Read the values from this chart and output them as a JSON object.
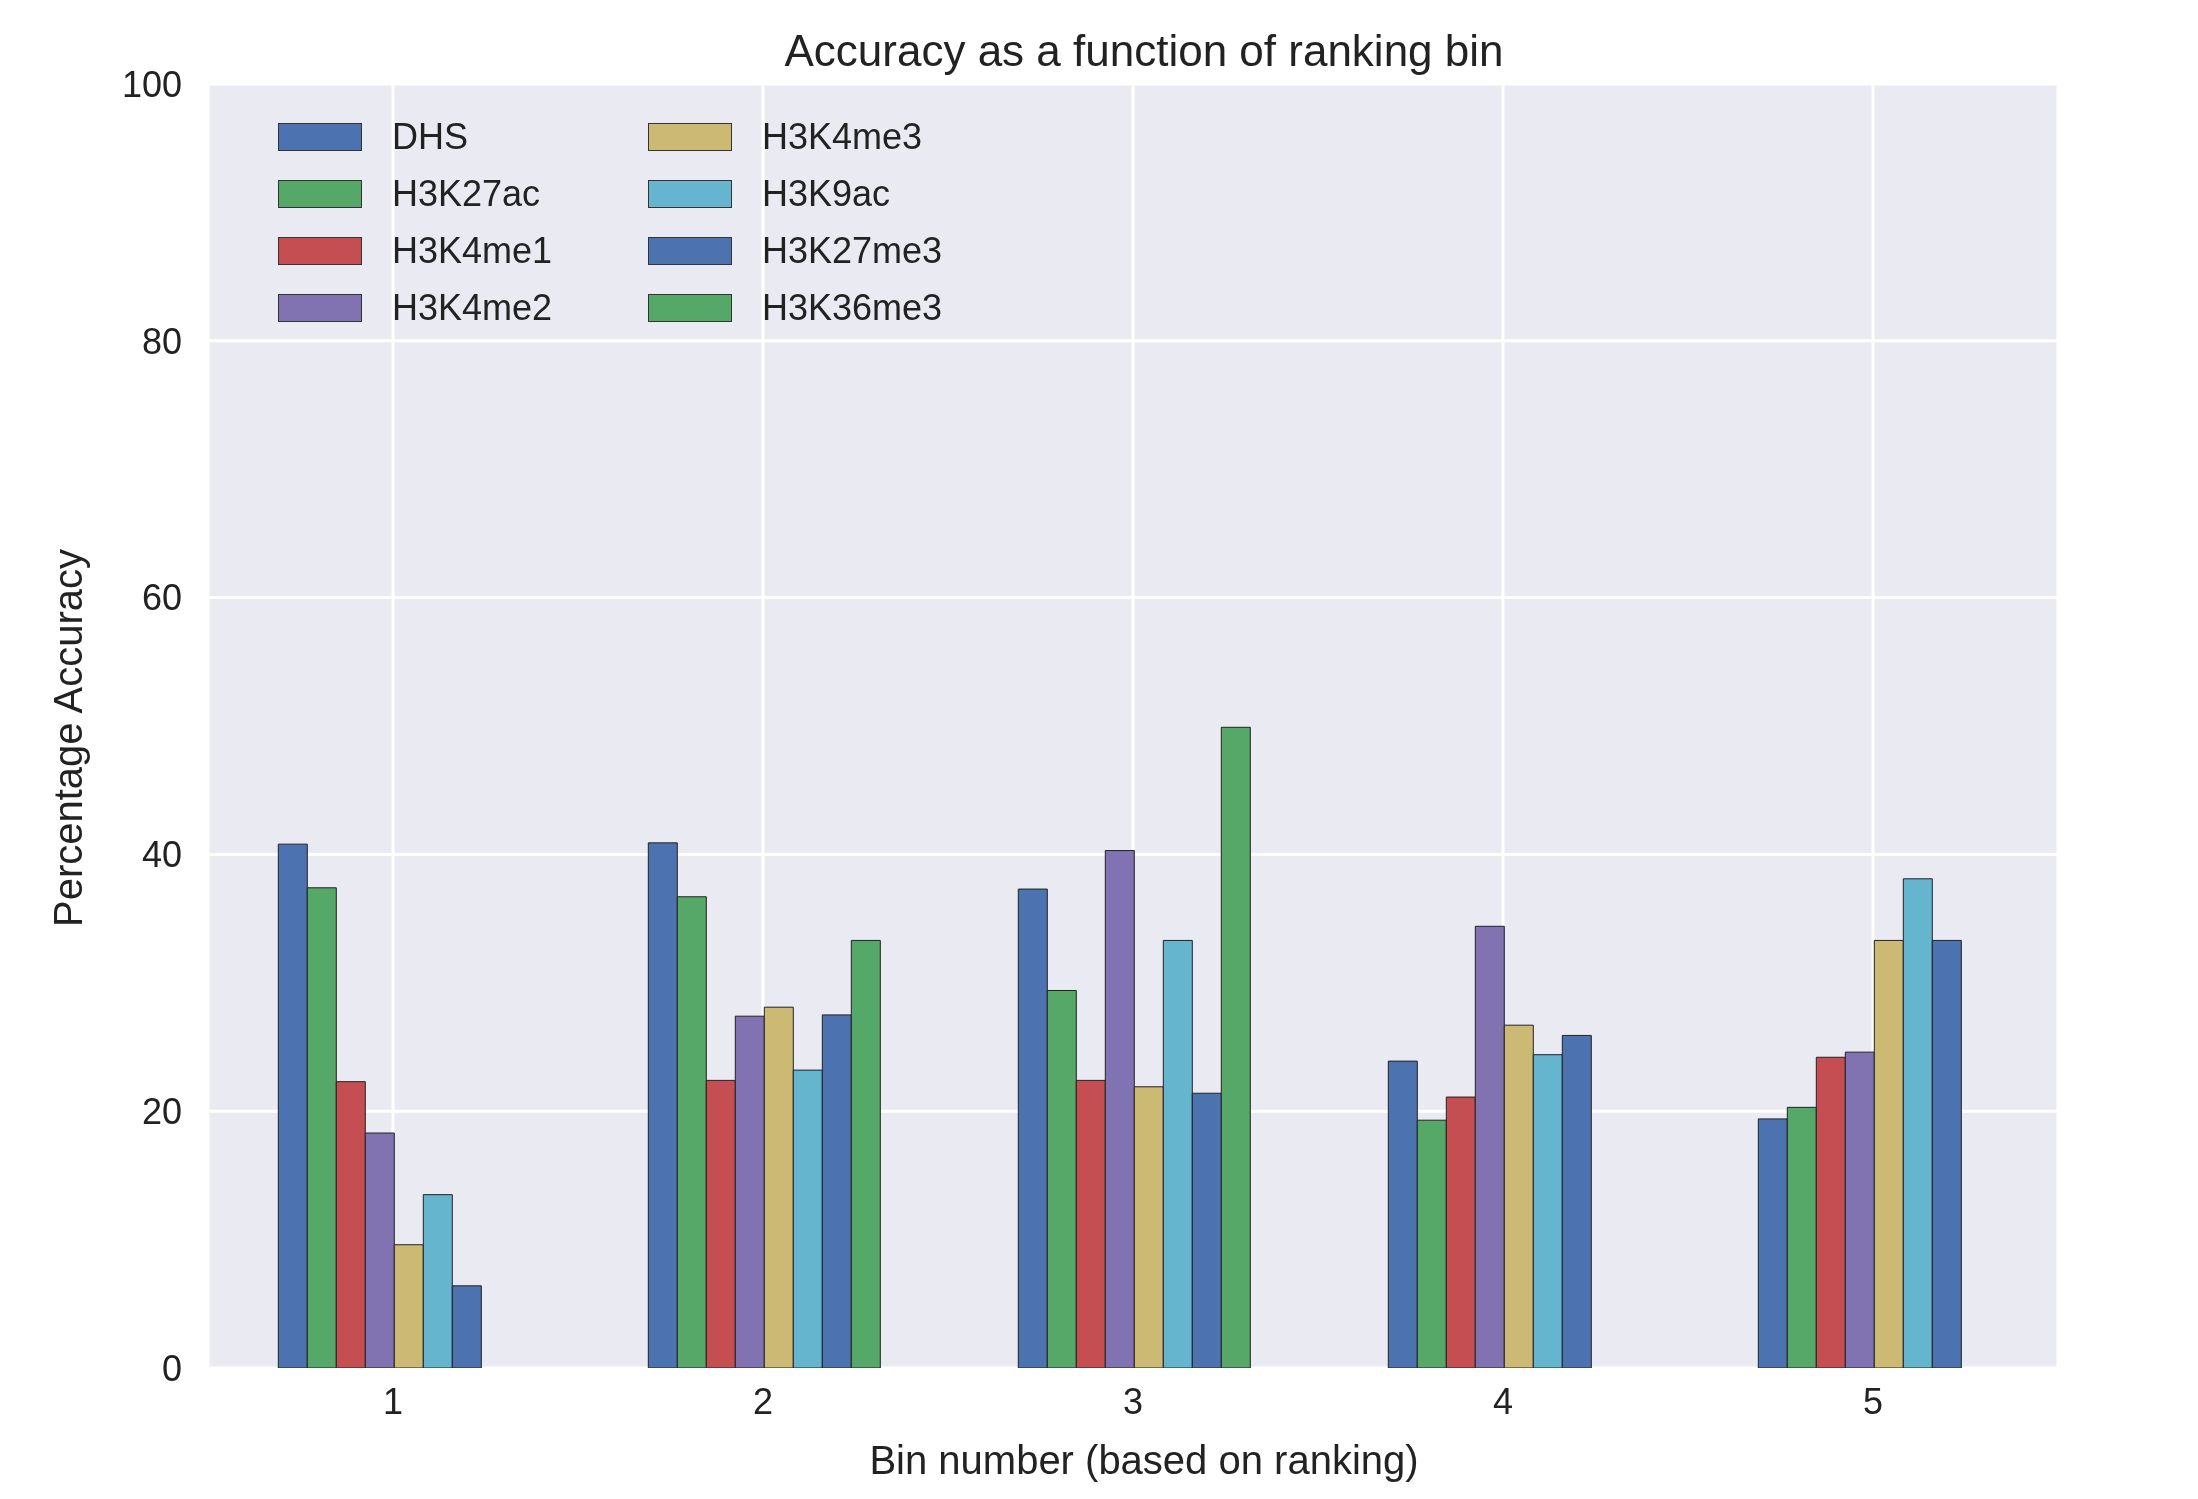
{
  "chart_data": {
    "type": "bar",
    "title": "Accuracy as a function of ranking bin",
    "xlabel": "Bin number (based on ranking)",
    "ylabel": "Percentage Accuracy",
    "categories": [
      "1",
      "2",
      "3",
      "4",
      "5"
    ],
    "series": [
      {
        "name": "DHS",
        "color": "#4c72b0",
        "values": [
          40.8,
          40.9,
          37.3,
          23.9,
          19.4
        ]
      },
      {
        "name": "H3K27ac",
        "color": "#55a868",
        "values": [
          37.4,
          36.7,
          29.4,
          19.3,
          20.3
        ]
      },
      {
        "name": "H3K4me1",
        "color": "#c44e52",
        "values": [
          22.3,
          22.4,
          22.4,
          21.1,
          24.2
        ]
      },
      {
        "name": "H3K4me2",
        "color": "#8172b2",
        "values": [
          18.3,
          27.4,
          40.3,
          34.4,
          24.6
        ]
      },
      {
        "name": "H3K4me3",
        "color": "#ccb974",
        "values": [
          9.6,
          28.1,
          21.9,
          26.7,
          33.3
        ]
      },
      {
        "name": "H3K9ac",
        "color": "#64b5cd",
        "values": [
          13.5,
          23.2,
          33.3,
          24.4,
          38.1
        ]
      },
      {
        "name": "H3K27me3",
        "color": "#4c72b0",
        "values": [
          6.4,
          27.5,
          21.4,
          25.9,
          33.3
        ]
      },
      {
        "name": "H3K36me3",
        "color": "#55a868",
        "values": [
          0,
          33.3,
          49.9,
          0,
          null
        ]
      }
    ],
    "ylim": [
      0,
      100
    ],
    "yticks": [
      0,
      20,
      40,
      60,
      80,
      100
    ],
    "grid": true,
    "legend": "top left"
  }
}
